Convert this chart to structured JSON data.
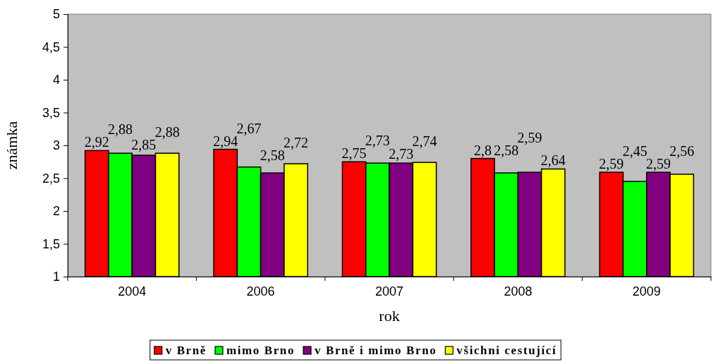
{
  "chart_data": {
    "type": "bar",
    "xlabel": "rok",
    "ylabel": "známka",
    "categories": [
      "2004",
      "2006",
      "2007",
      "2008",
      "2009"
    ],
    "series": [
      {
        "name": "v Brně",
        "color": "#ff0000",
        "values": [
          2.92,
          2.94,
          2.75,
          2.8,
          2.59
        ],
        "value_labels": [
          "2,92",
          "2,94",
          "2,75",
          "2,8",
          "2,59"
        ]
      },
      {
        "name": "mimo Brno",
        "color": "#00ff00",
        "values": [
          2.88,
          2.67,
          2.73,
          2.58,
          2.45
        ],
        "value_labels": [
          "2,88",
          "2,67",
          "2,73",
          "2,58",
          "2,45"
        ]
      },
      {
        "name": "v Brně i mimo Brno",
        "color": "#800080",
        "values": [
          2.85,
          2.58,
          2.73,
          2.59,
          2.59
        ],
        "value_labels": [
          "2,85",
          "2,58",
          "2,73",
          "2,59",
          "2,59"
        ]
      },
      {
        "name": "všichni cestující",
        "color": "#ffff00",
        "values": [
          2.88,
          2.72,
          2.74,
          2.64,
          2.56
        ],
        "value_labels": [
          "2,88",
          "2,72",
          "2,74",
          "2,64",
          "2,56"
        ]
      }
    ],
    "ylim": [
      1,
      5
    ],
    "yticks": [
      1,
      {
        "value": 1.5,
        "label": "1,5"
      },
      2,
      {
        "value": 2.5,
        "label": "2,5"
      },
      3,
      {
        "value": 3.5,
        "label": "3,5"
      },
      4,
      {
        "value": 4.5,
        "label": "4,5"
      },
      5
    ],
    "legend": "bottom"
  }
}
